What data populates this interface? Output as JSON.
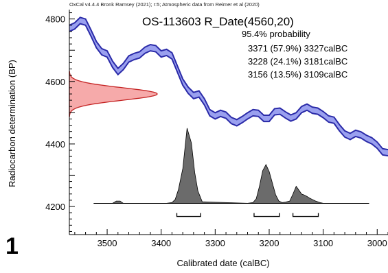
{
  "figure_number": "1",
  "header_note": "OxCal v4.4.4 Bronk Ramsey (2021); r:5; Atmospheric data from Reimer et al (2020)",
  "chart_data": {
    "type": "area",
    "title": "OS-113603 R_Date(4560,20)",
    "xlabel": "Calibrated date (calBC)",
    "ylabel": "Radiocarbon determination (BP)",
    "xlim": [
      3570,
      2980
    ],
    "ylim": [
      4110,
      4830
    ],
    "x_reversed": true,
    "x_ticks": [
      3500,
      3400,
      3300,
      3200,
      3100,
      3000
    ],
    "y_ticks": [
      4200,
      4400,
      4600,
      4800
    ],
    "probability_text": "95.4% probability",
    "ranges": [
      {
        "text": "3371 (57.9%) 3327calBC",
        "from": 3371,
        "to": 3327,
        "percent": 57.9
      },
      {
        "text": "3228 (24.1%) 3181calBC",
        "from": 3228,
        "to": 3181,
        "percent": 24.1
      },
      {
        "text": "3156 (13.5%) 3109calBC",
        "from": 3156,
        "to": 3109,
        "percent": 13.5
      }
    ],
    "calibration_curve": {
      "x": [
        3570,
        3560,
        3550,
        3540,
        3530,
        3520,
        3510,
        3500,
        3490,
        3480,
        3470,
        3460,
        3450,
        3440,
        3430,
        3420,
        3410,
        3400,
        3390,
        3380,
        3370,
        3360,
        3350,
        3340,
        3330,
        3320,
        3310,
        3300,
        3290,
        3280,
        3270,
        3260,
        3250,
        3240,
        3230,
        3220,
        3210,
        3200,
        3190,
        3180,
        3170,
        3160,
        3150,
        3140,
        3130,
        3120,
        3110,
        3100,
        3090,
        3080,
        3070,
        3060,
        3050,
        3040,
        3030,
        3020,
        3010,
        3000,
        2990,
        2980
      ],
      "y": [
        4770,
        4778,
        4795,
        4790,
        4755,
        4718,
        4695,
        4688,
        4655,
        4632,
        4648,
        4672,
        4680,
        4685,
        4700,
        4708,
        4705,
        4688,
        4693,
        4682,
        4640,
        4598,
        4572,
        4555,
        4560,
        4535,
        4500,
        4490,
        4498,
        4492,
        4475,
        4468,
        4478,
        4490,
        4500,
        4498,
        4482,
        4482,
        4503,
        4505,
        4493,
        4483,
        4490,
        4510,
        4518,
        4508,
        4505,
        4494,
        4480,
        4476,
        4452,
        4432,
        4424,
        4434,
        4429,
        4418,
        4410,
        4396,
        4375,
        4372
      ],
      "error": 10,
      "color": "#2a2aa8",
      "fill": "#9aa0ef"
    },
    "measurement": {
      "mean": 4560,
      "sigma": 20,
      "fill": "#f6aaaa",
      "stroke": "#c42222"
    },
    "posterior": {
      "baseline_from": 3525,
      "baseline_to": 3015,
      "x": [
        3525,
        3490,
        3483,
        3476,
        3470,
        3390,
        3380,
        3374,
        3368,
        3360,
        3352,
        3344,
        3338,
        3332,
        3324,
        3240,
        3230,
        3224,
        3218,
        3212,
        3206,
        3200,
        3194,
        3188,
        3182,
        3176,
        3170,
        3162,
        3156,
        3150,
        3146,
        3140,
        3136,
        3130,
        3126,
        3120,
        3114,
        3106,
        3100,
        3080,
        3015
      ],
      "y": [
        0,
        0,
        0.03,
        0.03,
        0,
        0,
        0.01,
        0.05,
        0.18,
        0.45,
        0.97,
        0.78,
        0.4,
        0.16,
        0.02,
        0,
        0.01,
        0.06,
        0.22,
        0.42,
        0.5,
        0.41,
        0.26,
        0.11,
        0.03,
        0.01,
        0.015,
        0.03,
        0.12,
        0.22,
        0.18,
        0.12,
        0.11,
        0.09,
        0.07,
        0.05,
        0.03,
        0.01,
        0,
        0,
        0
      ],
      "fill": "#6b6b6b"
    }
  }
}
